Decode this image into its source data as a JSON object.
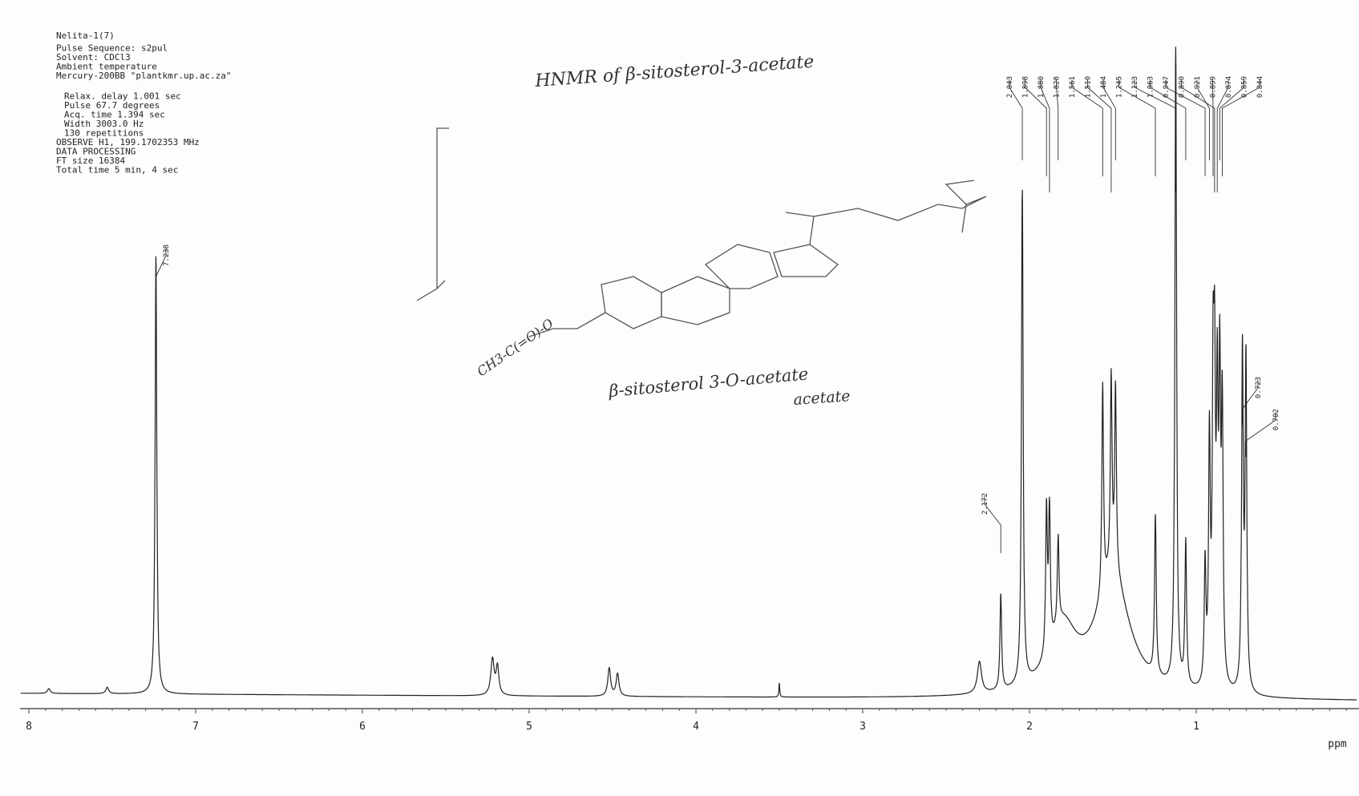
{
  "parameters": [
    "Nelita-1(7)",
    "Pulse Sequence: s2pul",
    "Solvent: CDCl3",
    "Ambient temperature",
    "Mercury-200BB \"plantkmr.up.ac.za\"",
    "Relax. delay 1.001 sec",
    "Pulse 67.7 degrees",
    "Acq. time 1.394 sec",
    "Width 3003.0 Hz",
    "130 repetitions",
    "OBSERVE H1, 199.1702353 MHz",
    "DATA PROCESSING",
    "FT size 16384",
    "Total time 5 min, 4 sec"
  ],
  "annotations": {
    "title": "HNMR of β-sitosterol-3-acetate",
    "structure_name": "β-sitosterol 3-O-acetate",
    "structure_note": "acetate",
    "substituent": "CH3-C(=O)-O"
  },
  "peak_labels": {
    "left": [
      "7.238",
      "2.172"
    ],
    "cluster": [
      "2.043",
      "1.898",
      "1.880",
      "1.828",
      "1.561",
      "1.510",
      "1.484",
      "1.245",
      "1.123",
      "1.063",
      "0.947",
      "0.890",
      "0.921",
      "0.899",
      "0.874",
      "0.859",
      "0.844"
    ],
    "right": [
      "0.723",
      "0.702"
    ]
  },
  "axis": {
    "ticks": [
      "8",
      "7",
      "6",
      "5",
      "4",
      "3",
      "2",
      "1"
    ],
    "unit": "ppm"
  }
}
